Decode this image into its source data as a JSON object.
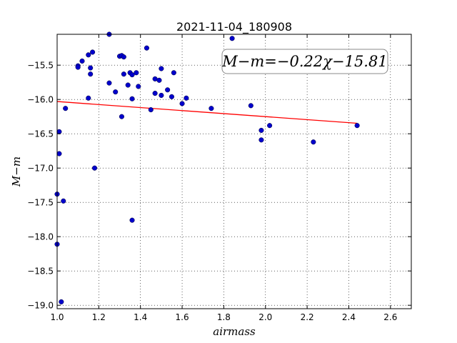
{
  "chart_data": {
    "type": "scatter",
    "title": "2021-11-04_180908",
    "xlabel": "airmass",
    "ylabel": "M−m",
    "xlim": [
      1.0,
      2.7
    ],
    "ylim": [
      -19.05,
      -15.05
    ],
    "x_ticks": [
      "1.0",
      "1.2",
      "1.4",
      "1.6",
      "1.8",
      "2.0",
      "2.2",
      "2.4",
      "2.6"
    ],
    "y_ticks": [
      "−15.5",
      "−16.0",
      "−16.5",
      "−17.0",
      "−17.5",
      "−18.0",
      "−18.5",
      "−19.0"
    ],
    "grid": true,
    "annotation": "M−m=−0.22χ−15.81",
    "fit_line": {
      "slope": -0.22,
      "intercept": -15.81,
      "x_range": [
        1.0,
        2.44
      ],
      "color": "#ff0000"
    },
    "marker_color": "#0000cc",
    "points": [
      [
        1.0,
        -17.38
      ],
      [
        1.0,
        -18.11
      ],
      [
        1.01,
        -16.47
      ],
      [
        1.01,
        -16.79
      ],
      [
        1.02,
        -18.95
      ],
      [
        1.03,
        -17.48
      ],
      [
        1.04,
        -16.13
      ],
      [
        1.1,
        -15.51
      ],
      [
        1.1,
        -15.53
      ],
      [
        1.12,
        -15.44
      ],
      [
        1.15,
        -15.35
      ],
      [
        1.15,
        -15.98
      ],
      [
        1.16,
        -15.54
      ],
      [
        1.16,
        -15.63
      ],
      [
        1.17,
        -15.31
      ],
      [
        1.18,
        -17.0
      ],
      [
        1.25,
        -15.05
      ],
      [
        1.25,
        -15.76
      ],
      [
        1.28,
        -15.89
      ],
      [
        1.3,
        -15.37
      ],
      [
        1.31,
        -15.36
      ],
      [
        1.31,
        -16.25
      ],
      [
        1.32,
        -15.63
      ],
      [
        1.32,
        -15.38
      ],
      [
        1.34,
        -15.79
      ],
      [
        1.35,
        -15.61
      ],
      [
        1.36,
        -15.64
      ],
      [
        1.36,
        -15.99
      ],
      [
        1.36,
        -17.76
      ],
      [
        1.38,
        -15.61
      ],
      [
        1.39,
        -15.81
      ],
      [
        1.43,
        -15.25
      ],
      [
        1.45,
        -16.15
      ],
      [
        1.47,
        -15.7
      ],
      [
        1.47,
        -15.91
      ],
      [
        1.49,
        -15.72
      ],
      [
        1.5,
        -15.55
      ],
      [
        1.5,
        -15.94
      ],
      [
        1.53,
        -15.86
      ],
      [
        1.55,
        -15.96
      ],
      [
        1.56,
        -15.61
      ],
      [
        1.6,
        -16.06
      ],
      [
        1.62,
        -15.98
      ],
      [
        1.74,
        -16.13
      ],
      [
        1.84,
        -15.11
      ],
      [
        1.93,
        -16.09
      ],
      [
        1.98,
        -16.45
      ],
      [
        1.98,
        -16.59
      ],
      [
        2.02,
        -16.38
      ],
      [
        2.23,
        -16.62
      ],
      [
        2.44,
        -16.38
      ]
    ]
  }
}
